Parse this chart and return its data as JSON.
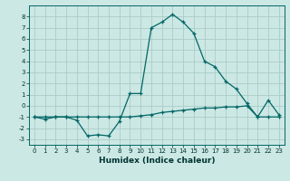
{
  "xlabel": "Humidex (Indice chaleur)",
  "bg_color": "#cce8e4",
  "grid_color": "#aaccc8",
  "line_color": "#006666",
  "x_values": [
    0,
    1,
    2,
    3,
    4,
    5,
    6,
    7,
    8,
    9,
    10,
    11,
    12,
    13,
    14,
    15,
    16,
    17,
    18,
    19,
    20,
    21,
    22,
    23
  ],
  "series1": [
    -1.0,
    -1.2,
    -1.0,
    -1.0,
    -1.3,
    -2.7,
    -2.6,
    -2.7,
    -1.4,
    1.1,
    1.1,
    7.0,
    7.5,
    8.2,
    7.5,
    6.5,
    4.0,
    3.5,
    2.2,
    1.5,
    0.2,
    -1.0,
    0.5,
    -0.8
  ],
  "series2": [
    -1.0,
    -1.0,
    -1.0,
    -1.0,
    -1.0,
    -1.0,
    -1.0,
    -1.0,
    -1.0,
    -1.0,
    -0.9,
    -0.8,
    -0.6,
    -0.5,
    -0.4,
    -0.3,
    -0.2,
    -0.2,
    -0.1,
    -0.1,
    0.0,
    -1.0,
    -1.0,
    -1.0
  ],
  "ylim": [
    -3.5,
    9.0
  ],
  "xlim": [
    -0.5,
    23.5
  ],
  "yticks": [
    -3,
    -2,
    -1,
    0,
    1,
    2,
    3,
    4,
    5,
    6,
    7,
    8
  ],
  "xticks": [
    0,
    1,
    2,
    3,
    4,
    5,
    6,
    7,
    8,
    9,
    10,
    11,
    12,
    13,
    14,
    15,
    16,
    17,
    18,
    19,
    20,
    21,
    22,
    23
  ],
  "tick_fontsize": 5.0,
  "xlabel_fontsize": 6.5
}
